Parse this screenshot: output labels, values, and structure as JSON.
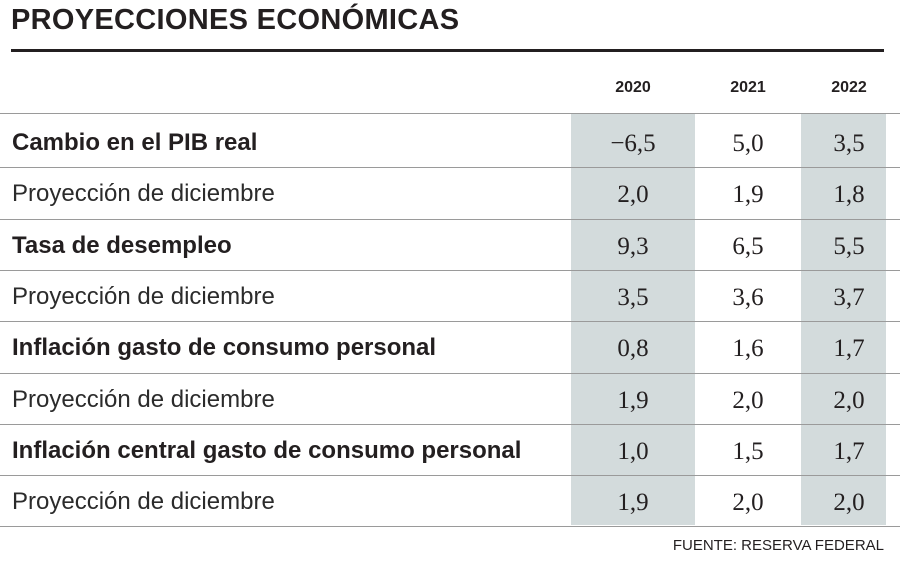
{
  "title": "PROYECCIONES ECONÓMICAS",
  "source": "FUENTE: RESERVA FEDERAL",
  "chart_data": {
    "type": "table",
    "title": "PROYECCIONES ECONÓMICAS",
    "columns": [
      "2020",
      "2021",
      "2022"
    ],
    "shaded_columns": [
      "2020",
      "2022"
    ],
    "shade_color": "#d3dbdc",
    "rows": [
      {
        "label": "Cambio en el PIB real",
        "bold": true,
        "values": [
          "−6,5",
          "5,0",
          "3,5"
        ]
      },
      {
        "label": "Proyección de diciembre",
        "bold": false,
        "values": [
          "2,0",
          "1,9",
          "1,8"
        ]
      },
      {
        "label": "Tasa de desempleo",
        "bold": true,
        "values": [
          "9,3",
          "6,5",
          "5,5"
        ]
      },
      {
        "label": "Proyección de diciembre",
        "bold": false,
        "values": [
          "3,5",
          "3,6",
          "3,7"
        ]
      },
      {
        "label": "Inflación gasto de consumo personal",
        "bold": true,
        "values": [
          "0,8",
          "1,6",
          "1,7"
        ]
      },
      {
        "label": "Proyección de diciembre",
        "bold": false,
        "values": [
          "1,9",
          "2,0",
          "2,0"
        ]
      },
      {
        "label": "Inflación central gasto de consumo personal",
        "bold": true,
        "values": [
          "1,0",
          "1,5",
          "1,7"
        ]
      },
      {
        "label": "Proyección de diciembre",
        "bold": false,
        "values": [
          "1,9",
          "2,0",
          "2,0"
        ]
      }
    ],
    "source": "FUENTE: RESERVA FEDERAL"
  }
}
